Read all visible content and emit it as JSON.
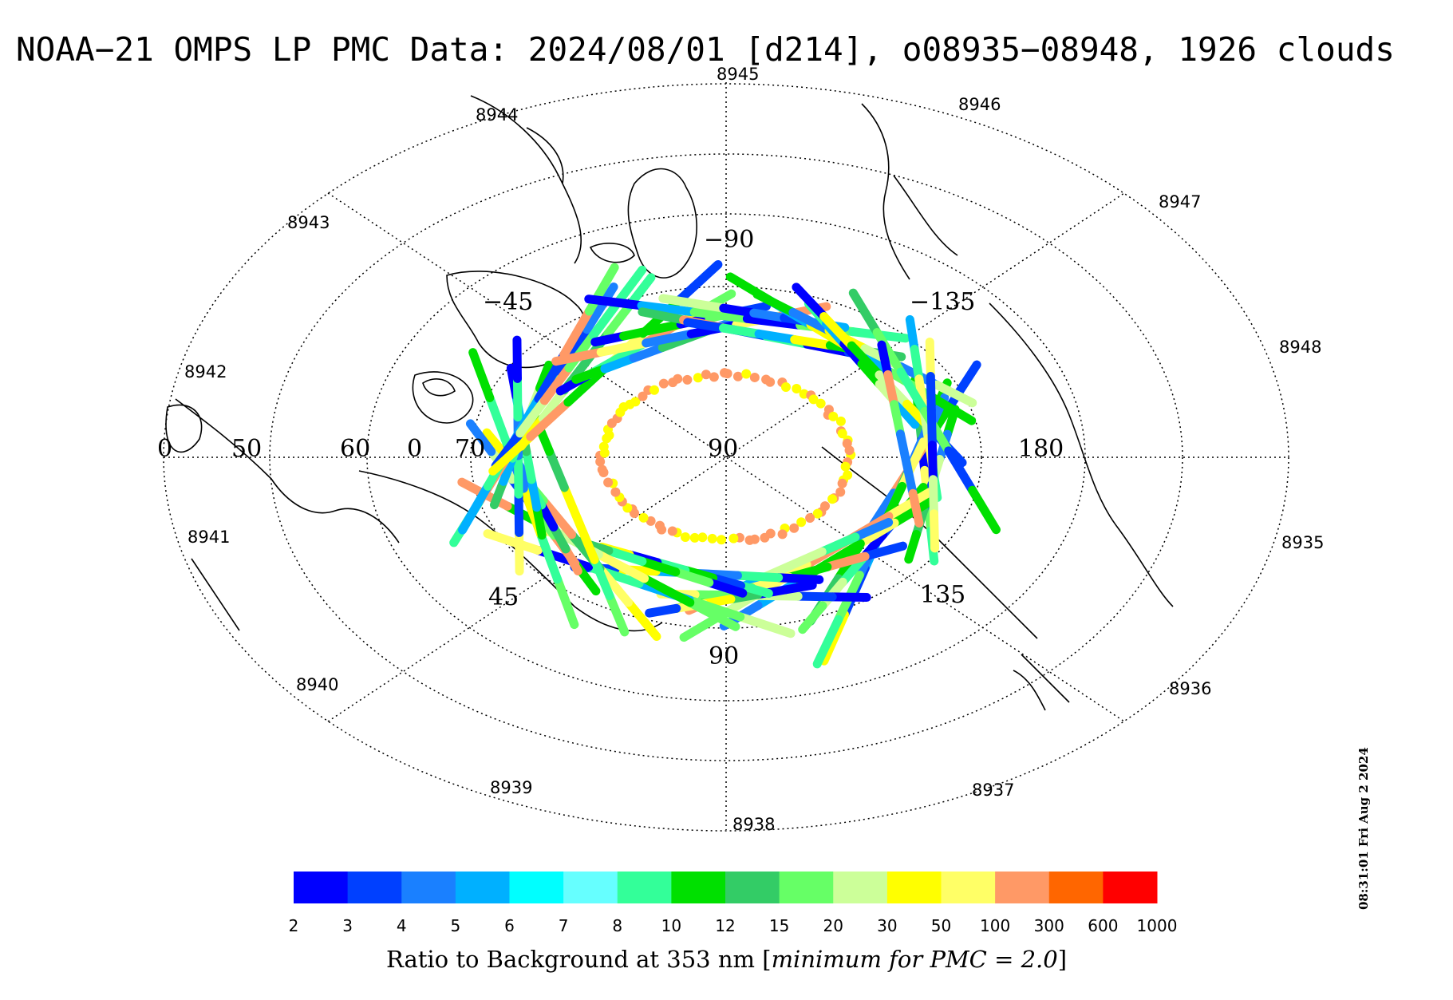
{
  "title": "NOAA−21 OMPS LP PMC Data: 2024/08/01 [d214], o08935−08948, 1926 clouds",
  "timestamp": "08:31:01 Fri Aug  2 2024",
  "orbit_labels": [
    "8935",
    "8936",
    "8937",
    "8938",
    "8939",
    "8940",
    "8941",
    "8942",
    "8943",
    "8944",
    "8945",
    "8946",
    "8947",
    "8948"
  ],
  "latitude_labels": [
    "50",
    "60",
    "70",
    "90"
  ],
  "longitude_labels": {
    "west_outer": "0",
    "west_inner": "0",
    "top": "−90",
    "top_left": "−45",
    "top_right": "−135",
    "right": "180",
    "bottom": "90",
    "bottom_left": "45",
    "bottom_right": "135"
  },
  "colorbar": {
    "ticks": [
      "2",
      "3",
      "4",
      "5",
      "6",
      "7",
      "8",
      "10",
      "12",
      "15",
      "20",
      "30",
      "50",
      "100",
      "300",
      "600",
      "1000"
    ],
    "colors": [
      "#0000ff",
      "#0040ff",
      "#1a80ff",
      "#00b0ff",
      "#00ffff",
      "#66ffff",
      "#33ff99",
      "#00e000",
      "#33cc66",
      "#66ff66",
      "#ccff99",
      "#ffff00",
      "#ffff66",
      "#ff9966",
      "#ff6600",
      "#ff0000"
    ],
    "title_prefix": "Ratio to Background at 353 nm [",
    "title_italic": "minimum for PMC = 2.0",
    "title_suffix": "]"
  },
  "track_colors": [
    "#0000ff",
    "#0040ff",
    "#1a80ff",
    "#00b0ff",
    "#33ff99",
    "#00e000",
    "#33cc66",
    "#66ff66",
    "#ccff99",
    "#ffff00",
    "#ffff66",
    "#ff9966"
  ]
}
